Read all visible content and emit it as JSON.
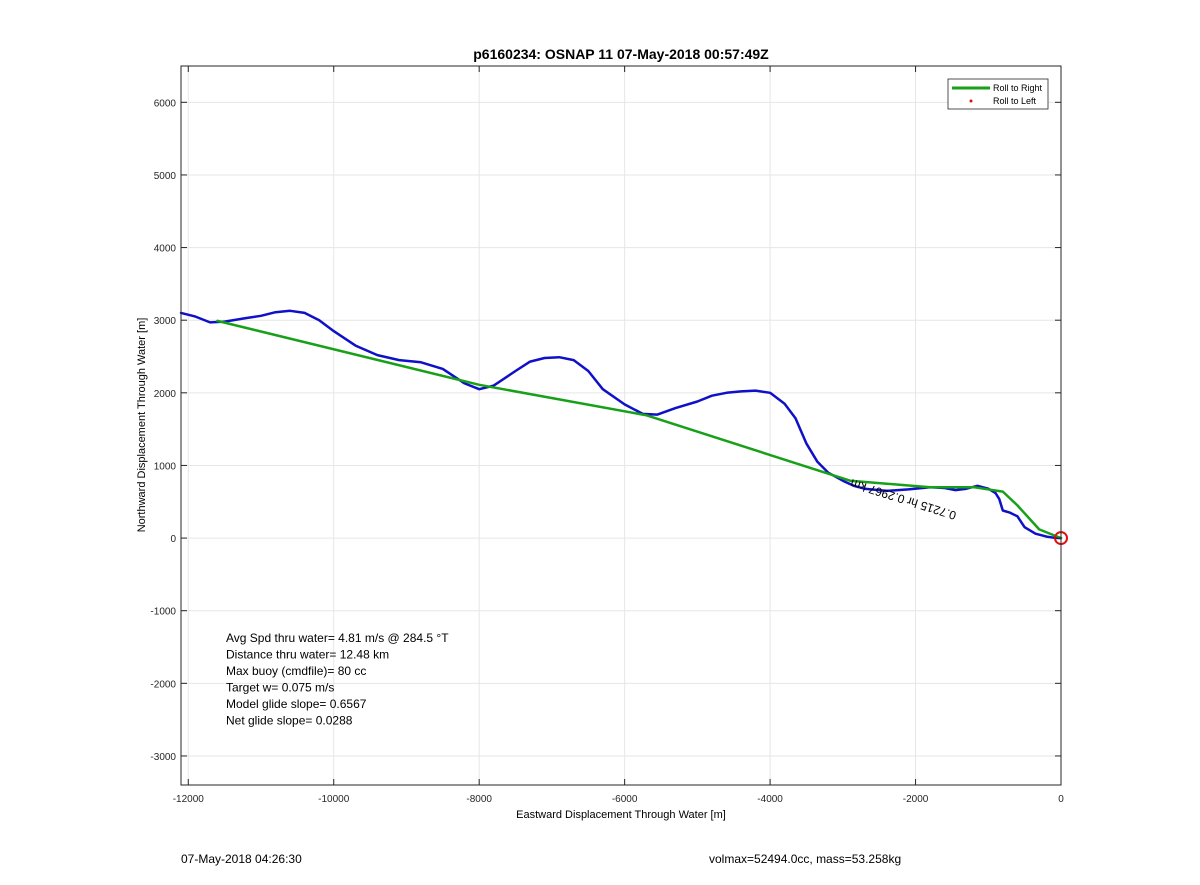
{
  "chart_data": {
    "type": "line",
    "title": "p6160234: OSNAP 11 07-May-2018 00:57:49Z",
    "xlabel": "Eastward Displacement Through Water [m]",
    "ylabel": "Northward Displacement Through Water [m]",
    "xlim": [
      -12100,
      0
    ],
    "ylim": [
      -3400,
      6500
    ],
    "xticks": [
      -12000,
      -10000,
      -8000,
      -6000,
      -4000,
      -2000,
      0
    ],
    "xtick_labels": [
      "-12000",
      "-10000",
      "-8000",
      "-6000",
      "-4000",
      "-2000",
      "0"
    ],
    "yticks": [
      -3000,
      -2000,
      -1000,
      0,
      1000,
      2000,
      3000,
      4000,
      5000,
      6000
    ],
    "ytick_labels": [
      "-3000",
      "-2000",
      "-1000",
      "0",
      "1000",
      "2000",
      "3000",
      "4000",
      "5000",
      "6000"
    ],
    "grid": true,
    "legend_position": "top-right",
    "legend": [
      "Roll to Right",
      "Roll to Left"
    ],
    "colors": {
      "track": "#1010c8",
      "straight": "#18a018",
      "marker": "#e01010",
      "axis": "#262626",
      "grid": "#e6e6e6"
    },
    "series": [
      {
        "name": "",
        "role": "track",
        "x": [
          -12100,
          -11900,
          -11700,
          -11500,
          -11200,
          -11000,
          -10800,
          -10600,
          -10400,
          -10200,
          -10000,
          -9700,
          -9400,
          -9100,
          -8800,
          -8500,
          -8200,
          -8000,
          -7800,
          -7500,
          -7300,
          -7100,
          -6900,
          -6700,
          -6500,
          -6300,
          -6000,
          -5750,
          -5550,
          -5300,
          -5000,
          -4800,
          -4600,
          -4400,
          -4200,
          -4000,
          -3800,
          -3650,
          -3500,
          -3350,
          -3200,
          -3000,
          -2850,
          -2700,
          -2400,
          -2100,
          -1800,
          -1600,
          -1450,
          -1300,
          -1150,
          -1000,
          -900,
          -850,
          -800,
          -700,
          -600,
          -500,
          -350,
          -200,
          -100,
          0
        ],
        "y": [
          3100,
          3050,
          2970,
          2980,
          3030,
          3060,
          3110,
          3130,
          3100,
          3000,
          2850,
          2650,
          2520,
          2450,
          2420,
          2330,
          2130,
          2050,
          2100,
          2300,
          2430,
          2480,
          2490,
          2450,
          2300,
          2050,
          1840,
          1710,
          1700,
          1790,
          1880,
          1960,
          2000,
          2020,
          2030,
          2000,
          1850,
          1650,
          1300,
          1050,
          900,
          790,
          720,
          680,
          650,
          670,
          700,
          690,
          660,
          680,
          720,
          680,
          620,
          540,
          380,
          350,
          300,
          150,
          60,
          20,
          5,
          0
        ]
      },
      {
        "name": "",
        "role": "straight",
        "x": [
          -11600,
          -8000,
          -5700,
          -2900,
          -1800,
          -1200,
          -800,
          -600,
          -300,
          0
        ],
        "y": [
          2990,
          2110,
          1690,
          790,
          700,
          700,
          640,
          450,
          120,
          0
        ]
      }
    ],
    "end_marker": {
      "x": 0,
      "y": 0
    },
    "annotations": [
      "Avg Spd thru water=  4.81 m/s @ 284.5 °T",
      "Distance thru water= 12.48 km",
      "Max buoy (cmdfile)= 80 cc",
      "Target w= 0.075 m/s",
      "Model glide slope= 0.6567",
      "Net glide slope= 0.0288"
    ],
    "track_label": "0.7215 hr 0.2967 km"
  },
  "footer": {
    "left": "07-May-2018 04:26:30",
    "right": "volmax=52494.0cc, mass=53.258kg"
  }
}
